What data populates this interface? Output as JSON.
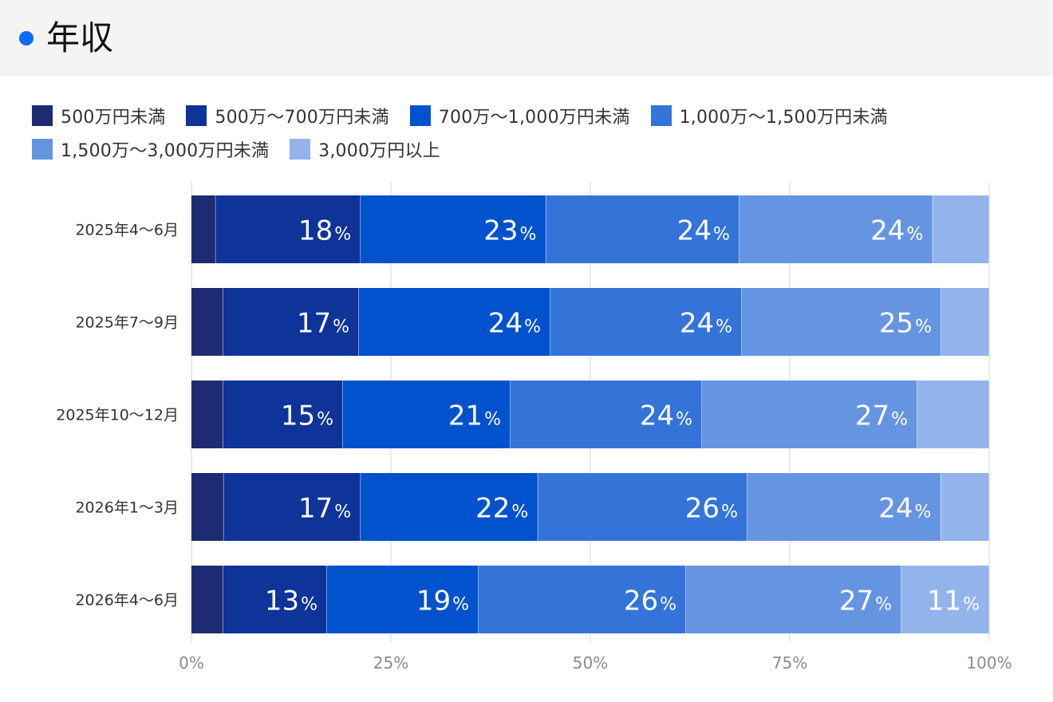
{
  "header": {
    "title": "年収",
    "accent_color": "#0a6cff"
  },
  "chart_data": {
    "type": "bar",
    "orientation": "horizontal",
    "stacked": true,
    "normalized": true,
    "categories": [
      "2025年4〜6月",
      "2025年7〜9月",
      "2025年10〜12月",
      "2026年1〜3月",
      "2026年4〜6月"
    ],
    "series": [
      {
        "name": "500万円未満",
        "color": "#1e2a72",
        "values": [
          3,
          4,
          4,
          4,
          4
        ]
      },
      {
        "name": "500万〜700万円未満",
        "color": "#0e3399",
        "values": [
          18,
          17,
          15,
          17,
          13
        ]
      },
      {
        "name": "700万〜1,000万円未満",
        "color": "#0152cc",
        "values": [
          23,
          24,
          21,
          22,
          19
        ]
      },
      {
        "name": "1,000万〜1,500万円未満",
        "color": "#3474d9",
        "values": [
          24,
          24,
          24,
          26,
          26
        ]
      },
      {
        "name": "1,500万〜3,000万円未満",
        "color": "#6595e1",
        "values": [
          24,
          25,
          27,
          24,
          27
        ]
      },
      {
        "name": "3,000万円以上",
        "color": "#93b4eb",
        "values": [
          7,
          6,
          9,
          6,
          11
        ]
      }
    ],
    "show_value_labels_min": 10,
    "value_suffix": "%",
    "xlim": [
      0,
      100
    ],
    "x_ticks": [
      "0%",
      "25%",
      "50%",
      "75%",
      "100%"
    ],
    "grid": true,
    "legend_position": "top"
  }
}
